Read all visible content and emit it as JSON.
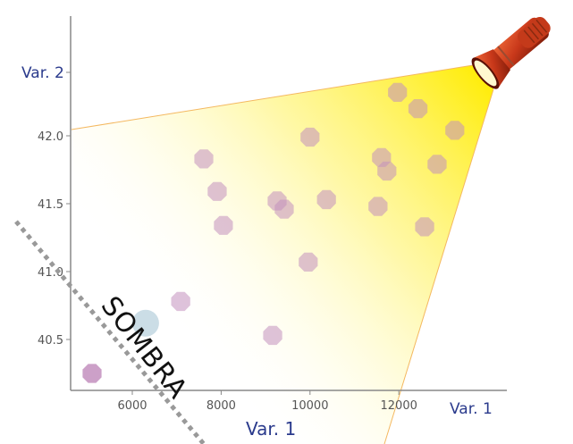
{
  "chart_data": {
    "type": "scatter",
    "title": "",
    "xlabel": "Var. 1",
    "ylabel": "Var. 2",
    "x_axis_end_label": "Var. 1",
    "y_axis_top_label": "Var. 2",
    "xlim": [
      4600,
      14400
    ],
    "ylim": [
      40.15,
      42.9
    ],
    "x_ticks": [
      6000,
      8000,
      10000,
      12000
    ],
    "x_tick_labels": [
      "6000",
      "8000",
      "10000",
      "12000"
    ],
    "y_ticks": [
      40.5,
      41.0,
      41.5,
      42.0
    ],
    "y_tick_labels": [
      "40.5",
      "41.0",
      "41.5",
      "42.0"
    ],
    "y_label_value": 42.47,
    "grid": false,
    "annotation": "SOMBRA",
    "colors": {
      "point": "#c38fbe",
      "highlight": "#a9c6d6",
      "light": "#ffee00",
      "axis": "#888888",
      "label": "#2a3a8c"
    },
    "points": [
      {
        "x": 5095,
        "y": 40.25
      },
      {
        "x": 7090,
        "y": 40.78
      },
      {
        "x": 9160,
        "y": 40.53
      },
      {
        "x": 7610,
        "y": 41.83
      },
      {
        "x": 7910,
        "y": 41.59
      },
      {
        "x": 8050,
        "y": 41.34
      },
      {
        "x": 9260,
        "y": 41.52
      },
      {
        "x": 9420,
        "y": 41.46
      },
      {
        "x": 9960,
        "y": 41.07
      },
      {
        "x": 10000,
        "y": 41.99
      },
      {
        "x": 10370,
        "y": 41.53
      },
      {
        "x": 11530,
        "y": 41.48
      },
      {
        "x": 11610,
        "y": 41.84
      },
      {
        "x": 11730,
        "y": 41.74
      },
      {
        "x": 11970,
        "y": 42.32
      },
      {
        "x": 12430,
        "y": 42.2
      },
      {
        "x": 12860,
        "y": 41.79
      },
      {
        "x": 13260,
        "y": 42.04
      },
      {
        "x": 12580,
        "y": 41.33
      }
    ],
    "highlight_point": {
      "x": 6300,
      "y": 40.62
    }
  }
}
